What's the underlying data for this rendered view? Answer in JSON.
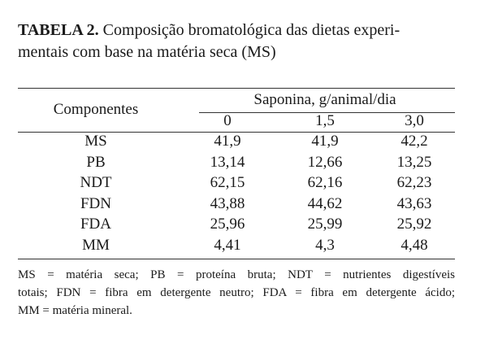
{
  "header": {
    "label": "TABELA 2.",
    "lines": [
      "Composição bromatológica das dietas experi-",
      "mentais com base na matéria seca (MS)"
    ]
  },
  "table": {
    "row_header": "Componentes",
    "group_header": "Saponina, g/animal/dia",
    "columns": [
      "0",
      "1,5",
      "3,0"
    ],
    "rows": [
      [
        "MS",
        "41,9",
        "41,9",
        "42,2"
      ],
      [
        "PB",
        "13,14",
        "12,66",
        "13,25"
      ],
      [
        "NDT",
        "62,15",
        "62,16",
        "62,23"
      ],
      [
        "FDN",
        "43,88",
        "44,62",
        "43,63"
      ],
      [
        "FDA",
        "25,96",
        "25,99",
        "25,92"
      ],
      [
        "MM",
        "4,41",
        "4,3",
        "4,48"
      ]
    ]
  },
  "footnote": {
    "lines": [
      "MS = matéria seca; PB = proteína bruta; NDT = nutrientes digestíveis",
      "totais; FDN = fibra em detergente neutro; FDA = fibra em detergente ácido;",
      "MM = matéria mineral."
    ]
  }
}
